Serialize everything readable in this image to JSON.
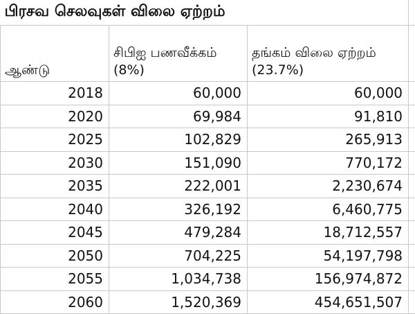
{
  "title": "பிரசவ செலவுகள் விலை ஏற்றம்",
  "headers": [
    "ஆண்டு",
    "சிபிஐ பணவீக்கம் (8%)",
    "தங்கம் விலை ஏற்றம் (23.7%)"
  ],
  "rows": [
    [
      "2018",
      "60,000",
      "60,000"
    ],
    [
      "2020",
      "69,984",
      "91,810"
    ],
    [
      "2025",
      "102,829",
      "265,913"
    ],
    [
      "2030",
      "151,090",
      "770,172"
    ],
    [
      "2035",
      "222,001",
      "2,230,674"
    ],
    [
      "2040",
      "326,192",
      "6,460,775"
    ],
    [
      "2045",
      "479,284",
      "18,712,557"
    ],
    [
      "2050",
      "704,225",
      "54,197,798"
    ],
    [
      "2055",
      "1,034,738",
      "156,974,872"
    ],
    [
      "2060",
      "1,520,369",
      "454,651,507"
    ]
  ]
}
